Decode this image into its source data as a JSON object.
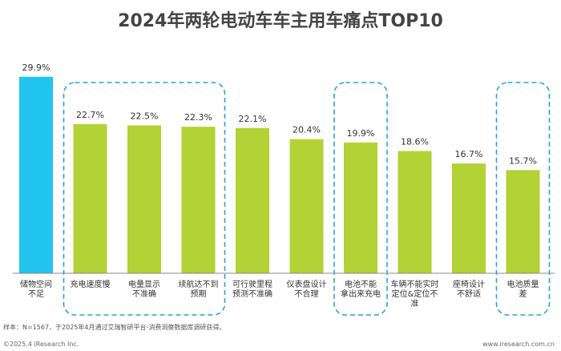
{
  "chart_data": {
    "type": "bar",
    "title": "2024年两轮电动车车主用车痛点TOP10",
    "categories": [
      "储物空间\n不足",
      "充电速度慢",
      "电量显示\n不准确",
      "续航达不到\n预期",
      "可行驶里程\n预测不准确",
      "仪表盘设计\n不合理",
      "电池不能\n拿出来充电",
      "车辆不能实时\n定位&定位不\n准",
      "座椅设计\n不舒适",
      "电池质量\n差"
    ],
    "values": [
      29.9,
      22.7,
      22.5,
      22.3,
      22.1,
      20.4,
      19.9,
      18.6,
      16.7,
      15.7
    ],
    "value_labels": [
      "29.9%",
      "22.7%",
      "22.5%",
      "22.3%",
      "22.1%",
      "20.4%",
      "19.9%",
      "18.6%",
      "16.7%",
      "15.7%"
    ],
    "highlight_groups": [
      [
        1,
        3
      ],
      [
        6,
        6
      ],
      [
        9,
        9
      ]
    ],
    "colors": {
      "first": "#22c4f0",
      "rest": "#b2d235",
      "highlight_border": "#29a3d9",
      "axis": "#888888"
    },
    "ylim": [
      0,
      30
    ]
  },
  "footer": {
    "note": "样本：N=1567，于2025年4月通过艾瑞智研平台-消费洞察数据库调研获得。",
    "copyright": "©2025.4 iResearch Inc.",
    "website": "www.iresearch.com.cn"
  }
}
